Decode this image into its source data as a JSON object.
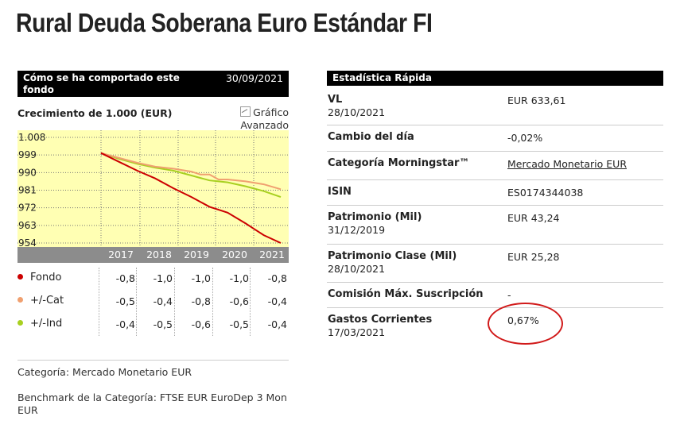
{
  "page_title": "Rural Deuda Soberana Euro Estándar FI",
  "performance": {
    "header": "Cómo se ha comportado este fondo",
    "date": "30/09/2021",
    "growth_title": "Crecimiento de 1.000 (EUR)",
    "advanced_link_line1": "Gráfico",
    "advanced_link_line2": "Avanzado",
    "icon": "line-chart-icon"
  },
  "chart_data": {
    "type": "line",
    "title": "Crecimiento de 1.000 (EUR)",
    "y_ticks": [
      "1.008",
      "999",
      "990",
      "981",
      "972",
      "963",
      "954"
    ],
    "ylim": [
      953,
      1008
    ],
    "x_ticks": [
      "2017",
      "2018",
      "2019",
      "2020",
      "2021"
    ],
    "grid": true,
    "colors": {
      "plot_bg": "#ffffb3",
      "axis_band": "#8c8c8c"
    },
    "series": [
      {
        "name": "Fondo",
        "color": "#cc0000",
        "x": [
          2016.75,
          2017.25,
          2017.75,
          2018.25,
          2018.75,
          2019.25,
          2019.75,
          2020.0,
          2020.25,
          2020.75,
          2021.0,
          2021.25,
          2021.72
        ],
        "y": [
          1000,
          995.5,
          991,
          987,
          982,
          977.5,
          972.5,
          971,
          969.5,
          964,
          961,
          958,
          954
        ]
      },
      {
        "name": "+/-Cat",
        "color": "#f0a070",
        "x": [
          2016.75,
          2017.25,
          2017.75,
          2018.25,
          2018.75,
          2019.25,
          2019.5,
          2019.75,
          2020.0,
          2020.25,
          2020.75,
          2021.25,
          2021.72
        ],
        "y": [
          1000,
          997.5,
          995,
          993,
          992,
          990.5,
          989,
          989,
          986.5,
          986.5,
          985.5,
          984,
          981.5
        ]
      },
      {
        "name": "+/-Ind",
        "color": "#a8d020",
        "x": [
          2016.75,
          2017.25,
          2017.75,
          2018.25,
          2018.75,
          2019.25,
          2019.75,
          2020.0,
          2020.25,
          2020.75,
          2021.25,
          2021.72
        ],
        "y": [
          1000,
          997,
          994.5,
          992.5,
          991,
          988.5,
          986,
          985.5,
          985,
          983,
          980.5,
          977.5
        ]
      }
    ]
  },
  "returns_table": {
    "rows": [
      {
        "label": "Fondo",
        "color": "#cc0000",
        "values": [
          "-0,8",
          "-1,0",
          "-1,0",
          "-1,0",
          "-0,8"
        ]
      },
      {
        "label": "+/-Cat",
        "color": "#f0a070",
        "values": [
          "-0,5",
          "-0,4",
          "-0,8",
          "-0,6",
          "-0,4"
        ]
      },
      {
        "label": "+/-Ind",
        "color": "#a8d020",
        "values": [
          "-0,4",
          "-0,5",
          "-0,6",
          "-0,5",
          "-0,4"
        ]
      }
    ]
  },
  "footer": {
    "category_label": "Categoría:",
    "category_value": "Mercado Monetario EUR",
    "benchmark_label": "Benchmark de la Categoría:",
    "benchmark_value_line1": "FTSE EUR EuroDep 3 Mon",
    "benchmark_value_line2": "EUR"
  },
  "stats": {
    "header": "Estadística Rápida",
    "rows": [
      {
        "label": "VL",
        "sub": "28/10/2021",
        "value": "EUR 633,61"
      },
      {
        "label": "Cambio del día",
        "value": "-0,02%"
      },
      {
        "label": "Categoría Morningstar™",
        "value": "Mercado Monetario EUR",
        "link": true
      },
      {
        "label": "ISIN",
        "value": "ES0174344038"
      },
      {
        "label": "Patrimonio (Mil)",
        "sub": "31/12/2019",
        "value": "EUR 43,24"
      },
      {
        "label": "Patrimonio Clase (Mil)",
        "sub": "28/10/2021",
        "value": "EUR 25,28"
      },
      {
        "label": "Comisión Máx. Suscripción",
        "value": "-"
      },
      {
        "label": "Gastos Corrientes",
        "sub": "17/03/2021",
        "value": "0,67%"
      }
    ]
  },
  "annotation": {
    "color": "#d11a1a"
  }
}
